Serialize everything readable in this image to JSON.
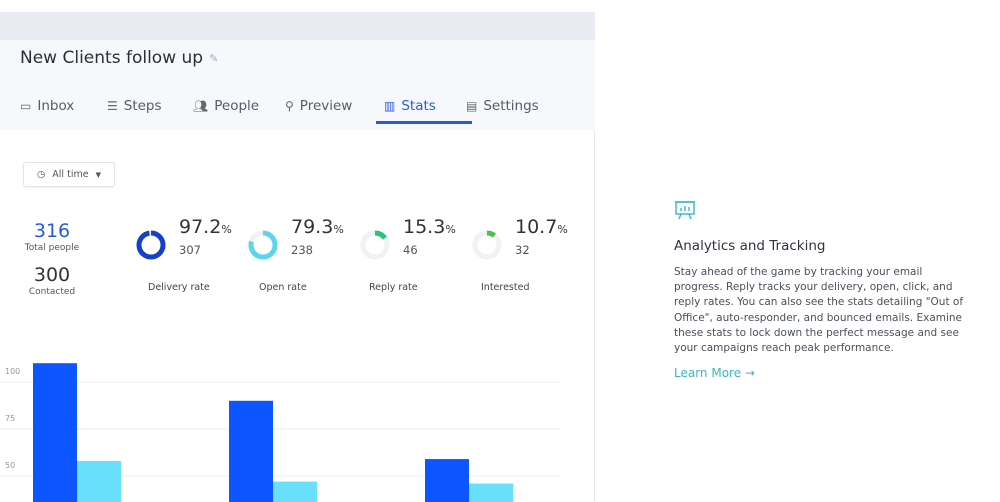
{
  "campaign": {
    "title": "New Clients follow up"
  },
  "tabs": [
    {
      "label": "Inbox",
      "icon": "inbox-icon"
    },
    {
      "label": "Steps",
      "icon": "list-icon"
    },
    {
      "label": "People",
      "icon": "people-icon"
    },
    {
      "label": "Preview",
      "icon": "search-icon"
    },
    {
      "label": "Stats",
      "icon": "presentation-chart-icon",
      "active": true
    },
    {
      "label": "Settings",
      "icon": "settings-form-icon"
    }
  ],
  "filter": {
    "label": "All time"
  },
  "totals": {
    "total_value": "316",
    "total_label": "Total people",
    "contacted_value": "300",
    "contacted_label": "Contacted",
    "total_color": "#2a5bd7"
  },
  "metrics": [
    {
      "pct": "97.2",
      "unit": "%",
      "count": "307",
      "label": "Delivery rate",
      "fraction": 0.972,
      "color": "#1740c8"
    },
    {
      "pct": "79.3",
      "unit": "%",
      "count": "238",
      "label": "Open rate",
      "fraction": 0.793,
      "color": "#5dd4ee"
    },
    {
      "pct": "15.3",
      "unit": "%",
      "count": "46",
      "label": "Reply rate",
      "fraction": 0.153,
      "color": "#2ec27e"
    },
    {
      "pct": "10.7",
      "unit": "%",
      "count": "32",
      "label": "Interested",
      "fraction": 0.107,
      "color": "#4cc24a"
    }
  ],
  "chart_data": {
    "type": "bar",
    "categories": [
      "",
      "",
      ""
    ],
    "series": [
      {
        "values": [
          110,
          90,
          59
        ],
        "color": "#0d55ff"
      },
      {
        "values": [
          58,
          47,
          46
        ],
        "color": "#69e0fb"
      }
    ],
    "yticks": [
      50,
      75,
      100
    ],
    "grid": true
  },
  "feature": {
    "icon": "presentation-chart-icon",
    "title": "Analytics and Tracking",
    "text": "Stay ahead of the game by tracking your email progress. Reply tracks your delivery, open, click, and reply rates. You can also see the stats detailing \"Out of Office\", auto-responder, and bounced emails. Examine these stats to lock down the perfect message and see your campaigns reach peak performance.",
    "link": "Learn More →",
    "accent": "#39b7c9"
  }
}
